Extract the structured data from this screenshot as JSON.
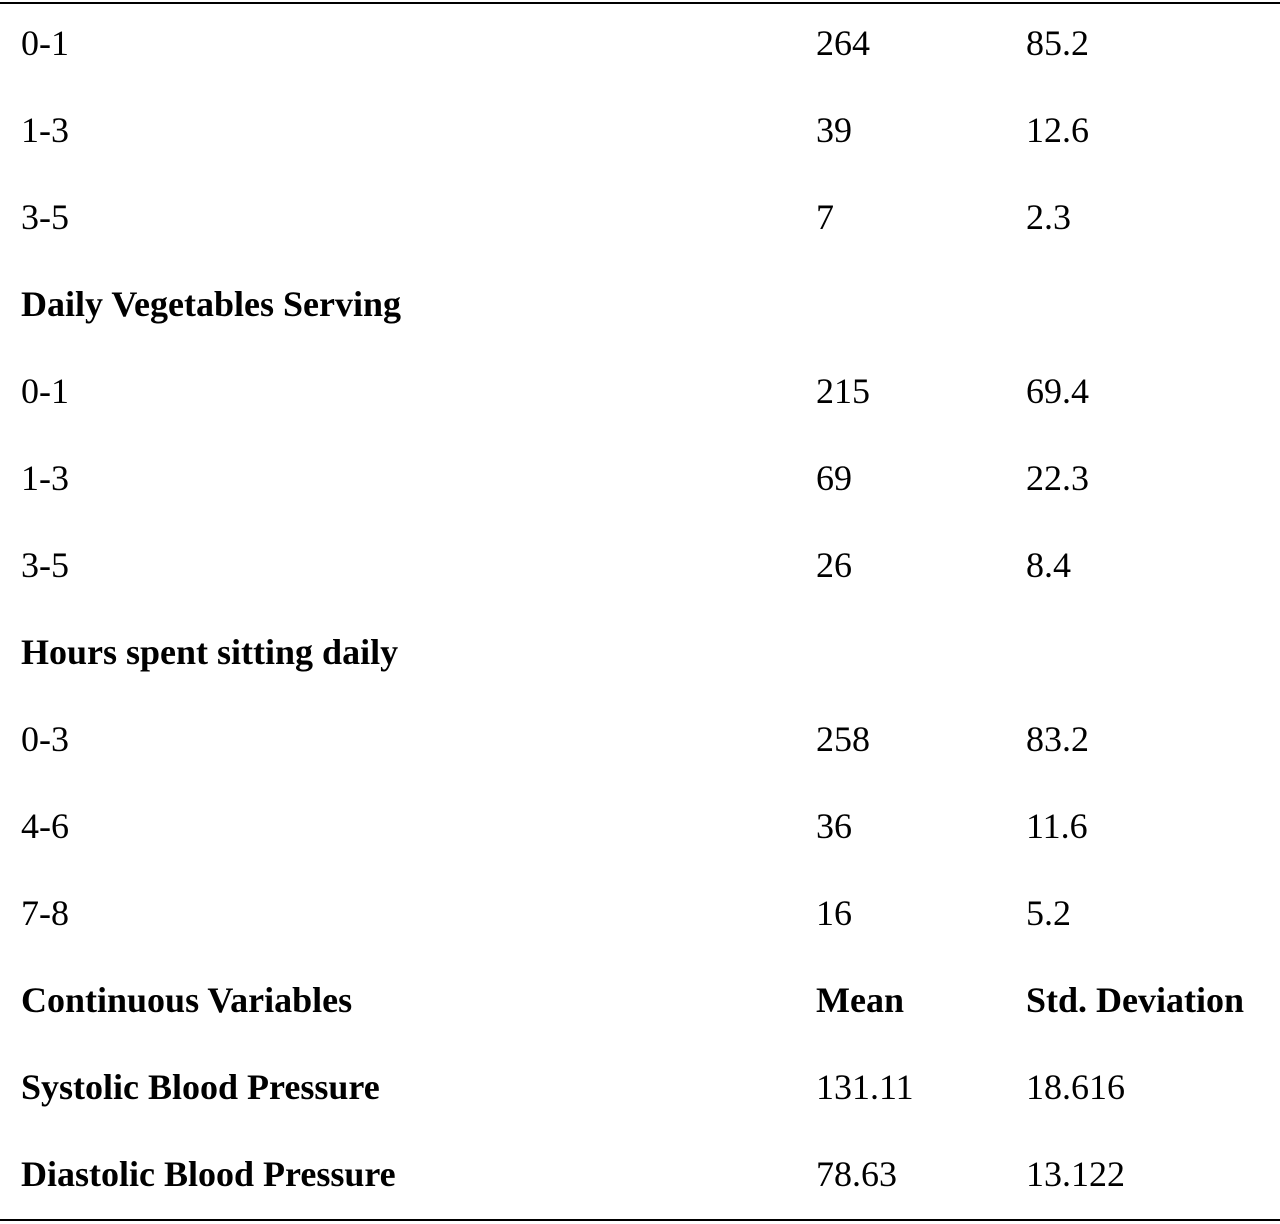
{
  "rows": [
    {
      "label": "0-1",
      "col2": "264",
      "col3": "85.2",
      "bold": false
    },
    {
      "label": "1-3",
      "col2": "39",
      "col3": "12.6",
      "bold": false
    },
    {
      "label": "3-5",
      "col2": "7",
      "col3": "2.3",
      "bold": false
    },
    {
      "label": "Daily Vegetables Serving",
      "col2": "",
      "col3": "",
      "bold": true
    },
    {
      "label": "0-1",
      "col2": "215",
      "col3": "69.4",
      "bold": false
    },
    {
      "label": "1-3",
      "col2": "69",
      "col3": "22.3",
      "bold": false
    },
    {
      "label": "3-5",
      "col2": "26",
      "col3": "8.4",
      "bold": false
    },
    {
      "label": "Hours spent sitting daily",
      "col2": "",
      "col3": "",
      "bold": true
    },
    {
      "label": "0-3",
      "col2": "258",
      "col3": "83.2",
      "bold": false
    },
    {
      "label": "4-6",
      "col2": "36",
      "col3": "11.6",
      "bold": false
    },
    {
      "label": "7-8",
      "col2": "16",
      "col3": "5.2",
      "bold": false
    },
    {
      "label": "Continuous Variables",
      "col2": "Mean",
      "col3": "Std. Deviation",
      "bold": true,
      "bold_all": true
    },
    {
      "label": "Systolic Blood Pressure",
      "col2": "131.11",
      "col3": "18.616",
      "bold": true
    },
    {
      "label": "Diastolic Blood Pressure",
      "col2": "78.63",
      "col3": "13.122",
      "bold": true
    }
  ]
}
